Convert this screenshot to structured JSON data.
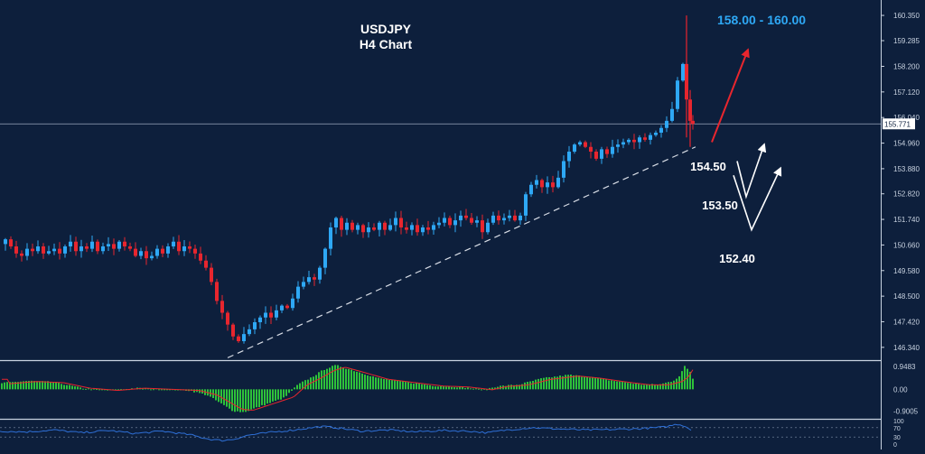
{
  "title": {
    "line1": "USDJPY",
    "line2": "H4 Chart"
  },
  "target_label": "158.00 - 160.00",
  "level_labels": [
    {
      "text": "154.50"
    },
    {
      "text": "153.50"
    },
    {
      "text": "152.40"
    }
  ],
  "current_price": 155.771,
  "colors": {
    "background": "#0d1f3c",
    "bull": "#2ea8f5",
    "bear": "#e8262e",
    "axis_text": "#c8d2e0",
    "target": "#2ea8f5",
    "arrow_red": "#e8262e",
    "arrow_white": "#ffffff",
    "histogram": "#2ec23a",
    "signal": "#e8262e",
    "rsi": "#2e6fd6"
  },
  "chart_data": [
    {
      "type": "candlestick",
      "ylim": [
        145.8,
        161.0
      ],
      "yticks": [
        "160.350",
        "159.285",
        "158.200",
        "157.120",
        "156.040",
        "154.960",
        "153.880",
        "152.820",
        "151.740",
        "150.660",
        "149.580",
        "148.500",
        "147.420",
        "146.340"
      ],
      "yticks_values": [
        160.35,
        159.285,
        158.2,
        157.12,
        156.04,
        154.96,
        153.88,
        152.82,
        151.74,
        150.66,
        149.58,
        148.5,
        147.42,
        146.34
      ],
      "close_path": [
        [
          0,
          150.7
        ],
        [
          6,
          150.9
        ],
        [
          12,
          150.6
        ],
        [
          18,
          150.3
        ],
        [
          24,
          150.2
        ],
        [
          30,
          150.5
        ],
        [
          36,
          150.4
        ],
        [
          42,
          150.6
        ],
        [
          48,
          150.3
        ],
        [
          54,
          150.4
        ],
        [
          60,
          150.5
        ],
        [
          66,
          150.3
        ],
        [
          72,
          150.6
        ],
        [
          78,
          150.8
        ],
        [
          84,
          150.4
        ],
        [
          90,
          150.6
        ],
        [
          96,
          150.5
        ],
        [
          102,
          150.8
        ],
        [
          108,
          150.4
        ],
        [
          114,
          150.6
        ],
        [
          120,
          150.7
        ],
        [
          126,
          150.5
        ],
        [
          132,
          150.8
        ],
        [
          138,
          150.6
        ],
        [
          144,
          150.5
        ],
        [
          150,
          150.2
        ],
        [
          156,
          150.4
        ],
        [
          162,
          150.1
        ],
        [
          168,
          150.2
        ],
        [
          174,
          150.5
        ],
        [
          180,
          150.3
        ],
        [
          186,
          150.6
        ],
        [
          192,
          150.8
        ],
        [
          198,
          150.4
        ],
        [
          204,
          150.6
        ],
        [
          210,
          150.5
        ],
        [
          216,
          150.3
        ],
        [
          222,
          150.0
        ],
        [
          228,
          149.7
        ],
        [
          234,
          149.1
        ],
        [
          240,
          148.3
        ],
        [
          246,
          147.8
        ],
        [
          252,
          147.3
        ],
        [
          258,
          146.8
        ],
        [
          264,
          146.6
        ],
        [
          270,
          146.9
        ],
        [
          276,
          147.1
        ],
        [
          282,
          147.4
        ],
        [
          288,
          147.6
        ],
        [
          294,
          147.8
        ],
        [
          300,
          147.6
        ],
        [
          306,
          147.9
        ],
        [
          312,
          148.1
        ],
        [
          318,
          148.0
        ],
        [
          324,
          148.4
        ],
        [
          330,
          148.9
        ],
        [
          336,
          149.1
        ],
        [
          342,
          149.3
        ],
        [
          348,
          149.2
        ],
        [
          354,
          149.7
        ],
        [
          360,
          150.5
        ],
        [
          366,
          151.4
        ],
        [
          372,
          151.8
        ],
        [
          378,
          151.3
        ],
        [
          384,
          151.6
        ],
        [
          390,
          151.3
        ],
        [
          396,
          151.5
        ],
        [
          402,
          151.2
        ],
        [
          408,
          151.4
        ],
        [
          414,
          151.3
        ],
        [
          420,
          151.6
        ],
        [
          426,
          151.3
        ],
        [
          432,
          151.5
        ],
        [
          438,
          151.8
        ],
        [
          444,
          151.4
        ],
        [
          450,
          151.3
        ],
        [
          456,
          151.5
        ],
        [
          462,
          151.2
        ],
        [
          468,
          151.4
        ],
        [
          474,
          151.3
        ],
        [
          480,
          151.5
        ],
        [
          486,
          151.6
        ],
        [
          492,
          151.8
        ],
        [
          498,
          151.5
        ],
        [
          504,
          151.7
        ],
        [
          510,
          151.9
        ],
        [
          516,
          151.8
        ],
        [
          522,
          151.6
        ],
        [
          528,
          151.7
        ],
        [
          534,
          151.2
        ],
        [
          540,
          151.6
        ],
        [
          546,
          151.9
        ],
        [
          552,
          151.7
        ],
        [
          558,
          151.8
        ],
        [
          564,
          151.9
        ],
        [
          570,
          151.7
        ],
        [
          576,
          151.9
        ],
        [
          582,
          152.8
        ],
        [
          588,
          153.2
        ],
        [
          594,
          153.4
        ],
        [
          600,
          153.1
        ],
        [
          606,
          153.3
        ],
        [
          612,
          153.1
        ],
        [
          618,
          153.5
        ],
        [
          624,
          154.2
        ],
        [
          630,
          154.6
        ],
        [
          636,
          154.9
        ],
        [
          642,
          155.0
        ],
        [
          648,
          154.8
        ],
        [
          654,
          154.6
        ],
        [
          660,
          154.3
        ],
        [
          666,
          154.7
        ],
        [
          672,
          154.5
        ],
        [
          678,
          154.8
        ],
        [
          684,
          154.9
        ],
        [
          690,
          155.0
        ],
        [
          696,
          155.1
        ],
        [
          702,
          155.0
        ],
        [
          708,
          155.2
        ],
        [
          714,
          155.1
        ],
        [
          720,
          155.3
        ],
        [
          726,
          155.4
        ],
        [
          732,
          155.6
        ],
        [
          738,
          155.9
        ],
        [
          744,
          156.4
        ],
        [
          750,
          157.6
        ],
        [
          756,
          158.3
        ],
        [
          760,
          156.8
        ],
        [
          764,
          155.9
        ],
        [
          767,
          155.77
        ]
      ],
      "spikes": [
        {
          "x": 760,
          "high": 160.35,
          "low": 155.2
        },
        {
          "x": 764,
          "high": 157.2,
          "low": 154.8
        }
      ],
      "trendline": [
        [
          252,
          145.9
        ],
        [
          770,
          154.8
        ]
      ],
      "projections": {
        "red_arrow": [
          [
            788,
            155.0
          ],
          [
            828,
            158.9
          ]
        ],
        "white_path_1": [
          [
            816,
            154.2
          ],
          [
            826,
            152.7
          ],
          [
            846,
            154.9
          ]
        ],
        "white_path_2": [
          [
            812,
            153.6
          ],
          [
            832,
            151.3
          ],
          [
            864,
            153.9
          ]
        ]
      }
    },
    {
      "type": "bar",
      "name": "histogram",
      "yticks": [
        "0.9483",
        "0.00",
        "-0.9005"
      ],
      "yticks_values": [
        0.9483,
        0.0,
        -0.9005
      ],
      "ylim": [
        -1.15,
        1.1
      ],
      "profile": [
        [
          0,
          0.25
        ],
        [
          30,
          0.35
        ],
        [
          60,
          0.3
        ],
        [
          90,
          0.05
        ],
        [
          120,
          -0.05
        ],
        [
          150,
          0.05
        ],
        [
          180,
          0.0
        ],
        [
          210,
          -0.05
        ],
        [
          230,
          -0.25
        ],
        [
          245,
          -0.6
        ],
        [
          258,
          -0.9
        ],
        [
          270,
          -0.95
        ],
        [
          285,
          -0.75
        ],
        [
          300,
          -0.55
        ],
        [
          315,
          -0.35
        ],
        [
          330,
          0.2
        ],
        [
          345,
          0.5
        ],
        [
          360,
          0.85
        ],
        [
          372,
          1.0
        ],
        [
          390,
          0.8
        ],
        [
          420,
          0.45
        ],
        [
          450,
          0.3
        ],
        [
          480,
          0.15
        ],
        [
          510,
          0.1
        ],
        [
          535,
          -0.02
        ],
        [
          550,
          0.12
        ],
        [
          575,
          0.2
        ],
        [
          600,
          0.45
        ],
        [
          630,
          0.6
        ],
        [
          655,
          0.5
        ],
        [
          680,
          0.35
        ],
        [
          710,
          0.2
        ],
        [
          730,
          0.2
        ],
        [
          745,
          0.35
        ],
        [
          752,
          0.55
        ],
        [
          758,
          0.95
        ],
        [
          765,
          0.7
        ],
        [
          767,
          0.45
        ]
      ]
    },
    {
      "type": "line",
      "name": "oscillator",
      "yticks": [
        "100",
        "70",
        "30",
        "0"
      ],
      "yticks_values": [
        100,
        70,
        30,
        0
      ],
      "ylim": [
        0,
        100
      ],
      "profile": [
        [
          0,
          55
        ],
        [
          30,
          52
        ],
        [
          60,
          60
        ],
        [
          90,
          48
        ],
        [
          120,
          58
        ],
        [
          150,
          45
        ],
        [
          180,
          55
        ],
        [
          210,
          40
        ],
        [
          230,
          22
        ],
        [
          245,
          15
        ],
        [
          258,
          20
        ],
        [
          275,
          38
        ],
        [
          300,
          50
        ],
        [
          330,
          62
        ],
        [
          355,
          75
        ],
        [
          372,
          70
        ],
        [
          400,
          55
        ],
        [
          430,
          60
        ],
        [
          460,
          52
        ],
        [
          490,
          58
        ],
        [
          520,
          55
        ],
        [
          540,
          48
        ],
        [
          560,
          60
        ],
        [
          590,
          70
        ],
        [
          620,
          64
        ],
        [
          650,
          60
        ],
        [
          680,
          62
        ],
        [
          710,
          66
        ],
        [
          735,
          72
        ],
        [
          750,
          85
        ],
        [
          758,
          78
        ],
        [
          767,
          55
        ]
      ]
    }
  ]
}
